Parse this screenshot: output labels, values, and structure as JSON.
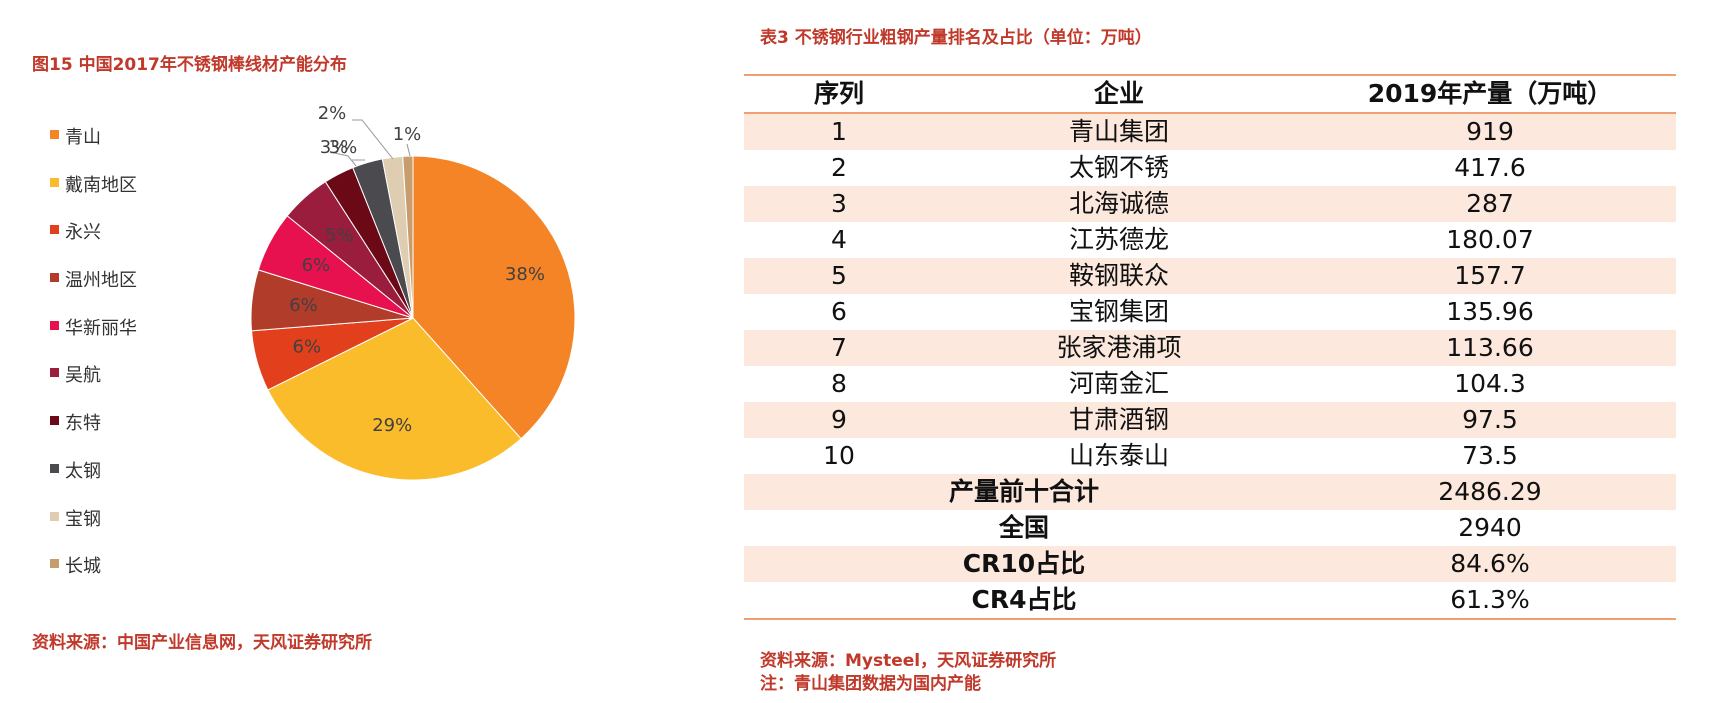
{
  "left_panel": {
    "title": "图15 中国2017年不锈钢棒线材产能分布",
    "source": "资料来源：中国产业信息网，天风证券研究所"
  },
  "chart_data": {
    "type": "pie",
    "title": "图15 中国2017年不锈钢棒线材产能分布",
    "categories": [
      "青山",
      "戴南地区",
      "永兴",
      "温州地区",
      "华新丽华",
      "吴航",
      "东特",
      "太钢",
      "宝钢",
      "长城"
    ],
    "values": [
      38,
      29,
      6,
      6,
      6,
      5,
      3,
      3,
      2,
      1
    ],
    "labels": [
      "38%",
      "29%",
      "6%",
      "6%",
      "6%",
      "5%",
      "3%",
      "3%",
      "2%",
      "1%"
    ],
    "colors": [
      "#f58426",
      "#fbbc2c",
      "#e2401c",
      "#b23c2a",
      "#e8114f",
      "#9b1d3e",
      "#6b0a16",
      "#4a4a4f",
      "#dfcdb2",
      "#c89d6d"
    ],
    "legend_position": "left",
    "start_angle_deg": 0,
    "direction": "clockwise"
  },
  "right_panel": {
    "title": "表3 不锈钢行业粗钢产量排名及占比（单位：万吨）",
    "headers": [
      "序列",
      "企业",
      "2019年产量（万吨）"
    ],
    "rows": [
      [
        "1",
        "青山集团",
        "919"
      ],
      [
        "2",
        "太钢不锈",
        "417.6"
      ],
      [
        "3",
        "北海诚德",
        "287"
      ],
      [
        "4",
        "江苏德龙",
        "180.07"
      ],
      [
        "5",
        "鞍钢联众",
        "157.7"
      ],
      [
        "6",
        "宝钢集团",
        "135.96"
      ],
      [
        "7",
        "张家港浦项",
        "113.66"
      ],
      [
        "8",
        "河南金汇",
        "104.3"
      ],
      [
        "9",
        "甘肃酒钢",
        "97.5"
      ],
      [
        "10",
        "山东泰山",
        "73.5"
      ]
    ],
    "summary_rows": [
      [
        "产量前十合计",
        "2486.29"
      ],
      [
        "全国",
        "2940"
      ],
      [
        "CR10占比",
        "84.6%"
      ],
      [
        "CR4占比",
        "61.3%"
      ]
    ],
    "source": "资料来源：Mysteel，天风证券研究所",
    "note": "注：青山集团数据为国内产能"
  }
}
